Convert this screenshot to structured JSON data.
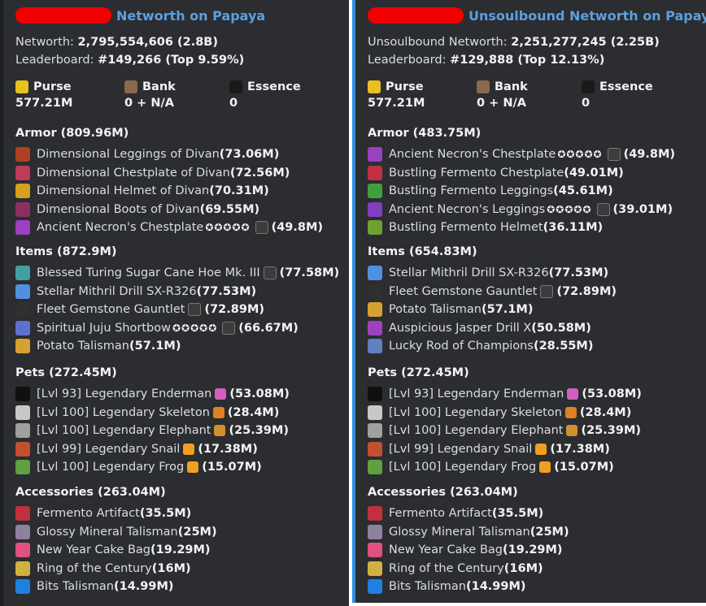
{
  "left": {
    "author": "Networth on Papaya",
    "accent": "#1e1f22",
    "networth_label": "Networth:",
    "networth_value": "2,795,554,606 (2.8B)",
    "leaderboard_label": "Leaderboard:",
    "leaderboard_value": "#149,266 (Top 9.59%)",
    "purse_label": "Purse",
    "purse_value": "577.21M",
    "bank_label": "Bank",
    "bank_value": "0 + N/A",
    "essence_label": "Essence",
    "essence_value": "0",
    "armor_title": "Armor (809.96M)",
    "armor": [
      {
        "name": "Dimensional Leggings of Divan",
        "value": "(73.06M)",
        "icon": "leggings-icon",
        "color": "#b04020"
      },
      {
        "name": "Dimensional Chestplate of Divan",
        "value": "(72.56M)",
        "icon": "chestplate-icon",
        "color": "#c03a5a"
      },
      {
        "name": "Dimensional Helmet of Divan",
        "value": "(70.31M)",
        "icon": "helmet-icon",
        "color": "#d4a020"
      },
      {
        "name": "Dimensional Boots of Divan",
        "value": "(69.55M)",
        "icon": "boots-icon",
        "color": "#8a3060"
      },
      {
        "name": "Ancient Necron's Chestplate",
        "value": "(49.8M)",
        "icon": "chestplate-icon",
        "color": "#9a40c0",
        "stars": "✪✪✪✪✪",
        "badge": true
      }
    ],
    "items_title": "Items (872.9M)",
    "items": [
      {
        "name": "Blessed Turing Sugar Cane Hoe Mk. III",
        "value": "(77.58M)",
        "icon": "hoe-icon",
        "color": "#40a0a0",
        "badge": true
      },
      {
        "name": "Stellar Mithril Drill SX-R326",
        "value": "(77.53M)",
        "icon": "drill-icon",
        "color": "#5090e0"
      },
      {
        "name": "Fleet Gemstone Gauntlet",
        "value": "(72.89M)",
        "icon": "gauntlet-icon",
        "color": "#303030",
        "badge": true
      },
      {
        "name": "Spiritual Juju Shortbow",
        "value": "(66.67M)",
        "icon": "bow-icon",
        "color": "#6070d0",
        "stars": "✪✪✪✪✪",
        "badge": true
      },
      {
        "name": "Potato Talisman",
        "value": "(57.1M)",
        "icon": "potato-icon",
        "color": "#d8a030"
      }
    ],
    "pets_title": "Pets (272.45M)",
    "pets": [
      {
        "name": "[Lvl 93] Legendary Enderman",
        "value": "(53.08M)",
        "icon": "enderman-icon",
        "color": "#101010",
        "extra": "sword-icon",
        "extra_color": "#d060c0"
      },
      {
        "name": "[Lvl 100] Legendary Skeleton",
        "value": "(28.4M)",
        "icon": "skeleton-icon",
        "color": "#c8c8c8",
        "extra": "pumpkin-icon",
        "extra_color": "#e08020"
      },
      {
        "name": "[Lvl 100] Legendary Elephant",
        "value": "(25.39M)",
        "icon": "elephant-icon",
        "color": "#a0a0a0",
        "extra": "plank-icon",
        "extra_color": "#d09030"
      },
      {
        "name": "[Lvl 99] Legendary Snail",
        "value": "(17.38M)",
        "icon": "snail-icon",
        "color": "#c05030",
        "extra": "candy-icon",
        "extra_color": "#f0a020"
      },
      {
        "name": "[Lvl 100] Legendary Frog",
        "value": "(15.07M)",
        "icon": "frog-icon",
        "color": "#60a040",
        "extra": "candy-icon",
        "extra_color": "#f0a020"
      }
    ],
    "acc_title": "Accessories (263.04M)",
    "accessories": [
      {
        "name": "Fermento Artifact",
        "value": "(35.5M)",
        "icon": "mushroom-icon",
        "color": "#c03040"
      },
      {
        "name": "Glossy Mineral Talisman",
        "value": "(25M)",
        "icon": "mineral-icon",
        "color": "#9080a0"
      },
      {
        "name": "New Year Cake Bag",
        "value": "(19.29M)",
        "icon": "cake-icon",
        "color": "#e05080"
      },
      {
        "name": "Ring of the Century",
        "value": "(16M)",
        "icon": "ring-icon",
        "color": "#d0b040"
      },
      {
        "name": "Bits Talisman",
        "value": "(14.99M)",
        "icon": "bits-icon",
        "color": "#2080e0"
      }
    ]
  },
  "right": {
    "author": "Unsoulbound Networth on Papaya",
    "accent": "#2f8ee0",
    "networth_label": "Unsoulbound Networth:",
    "networth_value": "2,251,277,245 (2.25B)",
    "leaderboard_label": "Leaderboard:",
    "leaderboard_value": "#129,888 (Top 12.13%)",
    "purse_label": "Purse",
    "purse_value": "577.21M",
    "bank_label": "Bank",
    "bank_value": "0 + N/A",
    "essence_label": "Essence",
    "essence_value": "0",
    "armor_title": "Armor (483.75M)",
    "armor": [
      {
        "name": "Ancient Necron's Chestplate",
        "value": "(49.8M)",
        "icon": "chestplate-icon",
        "color": "#9a40c0",
        "stars": "✪✪✪✪✪",
        "badge": true
      },
      {
        "name": "Bustling Fermento Chestplate",
        "value": "(49.01M)",
        "icon": "chestplate-icon",
        "color": "#c03040"
      },
      {
        "name": "Bustling Fermento Leggings",
        "value": "(45.61M)",
        "icon": "leggings-icon",
        "color": "#40a040"
      },
      {
        "name": "Ancient Necron's Leggings",
        "value": "(39.01M)",
        "icon": "leggings-icon",
        "color": "#8040c0",
        "stars": "✪✪✪✪✪",
        "badge": true
      },
      {
        "name": "Bustling Fermento Helmet",
        "value": "(36.11M)",
        "icon": "helmet-icon",
        "color": "#70a030"
      }
    ],
    "items_title": "Items (654.83M)",
    "items": [
      {
        "name": "Stellar Mithril Drill SX-R326",
        "value": "(77.53M)",
        "icon": "drill-icon",
        "color": "#5090e0"
      },
      {
        "name": "Fleet Gemstone Gauntlet",
        "value": "(72.89M)",
        "icon": "gauntlet-icon",
        "color": "#303030",
        "badge": true
      },
      {
        "name": "Potato Talisman",
        "value": "(57.1M)",
        "icon": "potato-icon",
        "color": "#d8a030"
      },
      {
        "name": "Auspicious Jasper Drill X",
        "value": "(50.58M)",
        "icon": "drill-icon",
        "color": "#a040c0"
      },
      {
        "name": "Lucky Rod of Champions",
        "value": "(28.55M)",
        "icon": "rod-icon",
        "color": "#6080c0"
      }
    ],
    "pets_title": "Pets (272.45M)",
    "pets": [
      {
        "name": "[Lvl 93] Legendary Enderman",
        "value": "(53.08M)",
        "icon": "enderman-icon",
        "color": "#101010",
        "extra": "sword-icon",
        "extra_color": "#d060c0"
      },
      {
        "name": "[Lvl 100] Legendary Skeleton",
        "value": "(28.4M)",
        "icon": "skeleton-icon",
        "color": "#c8c8c8",
        "extra": "pumpkin-icon",
        "extra_color": "#e08020"
      },
      {
        "name": "[Lvl 100] Legendary Elephant",
        "value": "(25.39M)",
        "icon": "elephant-icon",
        "color": "#a0a0a0",
        "extra": "plank-icon",
        "extra_color": "#d09030"
      },
      {
        "name": "[Lvl 99] Legendary Snail",
        "value": "(17.38M)",
        "icon": "snail-icon",
        "color": "#c05030",
        "extra": "candy-icon",
        "extra_color": "#f0a020"
      },
      {
        "name": "[Lvl 100] Legendary Frog",
        "value": "(15.07M)",
        "icon": "frog-icon",
        "color": "#60a040",
        "extra": "candy-icon",
        "extra_color": "#f0a020"
      }
    ],
    "acc_title": "Accessories (263.04M)",
    "accessories": [
      {
        "name": "Fermento Artifact",
        "value": "(35.5M)",
        "icon": "mushroom-icon",
        "color": "#c03040"
      },
      {
        "name": "Glossy Mineral Talisman",
        "value": "(25M)",
        "icon": "mineral-icon",
        "color": "#9080a0"
      },
      {
        "name": "New Year Cake Bag",
        "value": "(19.29M)",
        "icon": "cake-icon",
        "color": "#e05080"
      },
      {
        "name": "Ring of the Century",
        "value": "(16M)",
        "icon": "ring-icon",
        "color": "#d0b040"
      },
      {
        "name": "Bits Talisman",
        "value": "(14.99M)",
        "icon": "bits-icon",
        "color": "#2080e0"
      }
    ]
  }
}
